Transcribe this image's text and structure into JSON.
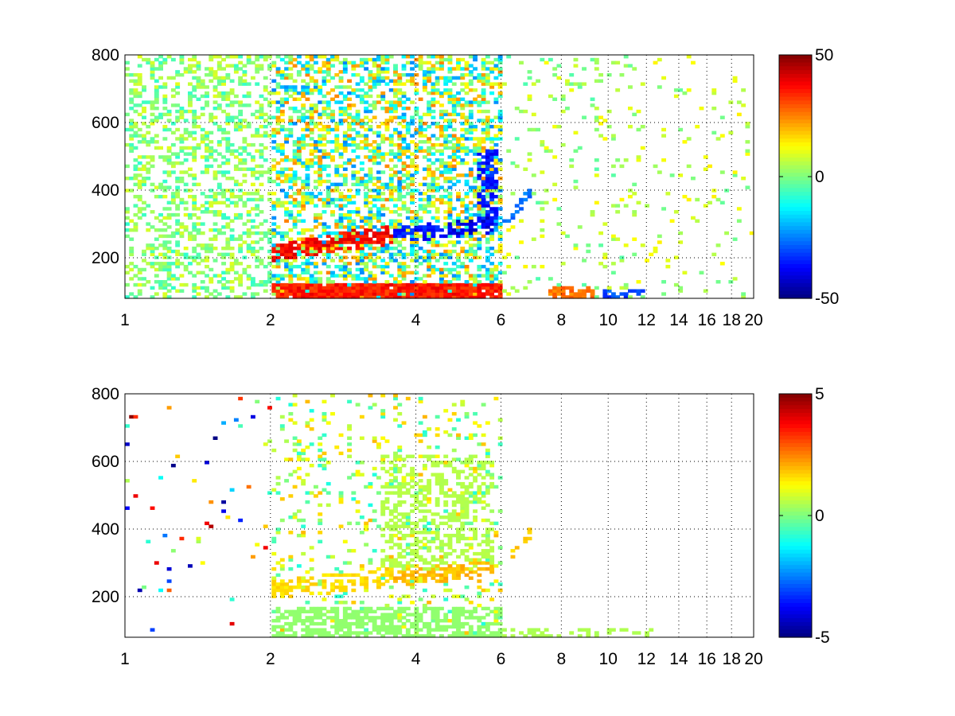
{
  "chart_data": [
    {
      "type": "heatmap",
      "title": "",
      "xlabel": "",
      "ylabel": "",
      "xscale": "log",
      "xlim": [
        1,
        20
      ],
      "ylim": [
        80,
        800
      ],
      "x_ticks": [
        1,
        2,
        4,
        6,
        8,
        10,
        12,
        14,
        16,
        18,
        20
      ],
      "x_tick_labels": [
        "1",
        "2",
        "4",
        "6",
        "8",
        "10",
        "12",
        "14",
        "16",
        "18",
        "20"
      ],
      "y_ticks": [
        200,
        400,
        600,
        800
      ],
      "y_tick_labels": [
        "200",
        "400",
        "600",
        "800"
      ],
      "grid": true,
      "colormap": "jet",
      "clim": [
        -50,
        50
      ],
      "colorbar_ticks": [
        50,
        0,
        -50
      ],
      "colorbar_tick_labels": [
        "50",
        "0",
        "-50"
      ],
      "colorbar_position": "right",
      "background_color": "#ffffff",
      "features": [
        {
          "kind": "ridge",
          "x_range": [
            2.0,
            3.6
          ],
          "y_start": 220,
          "y_end": 270,
          "value": 42,
          "width": 30,
          "density": 0.85
        },
        {
          "kind": "ridge",
          "x_range": [
            3.6,
            4.6
          ],
          "y_start": 270,
          "y_end": 285,
          "value": -40,
          "width": 25,
          "density": 0.8
        },
        {
          "kind": "ridge",
          "x_range": [
            4.6,
            5.8
          ],
          "y_start": 280,
          "y_end": 300,
          "value": -45,
          "width": 25,
          "density": 0.8
        },
        {
          "kind": "ridge",
          "x_range": [
            6.0,
            7.0
          ],
          "y_start": 300,
          "y_end": 400,
          "value": -30,
          "width": 20,
          "density": 0.6
        },
        {
          "kind": "band",
          "x_range": [
            2.0,
            6.0
          ],
          "y_range": [
            80,
            125
          ],
          "value": 40,
          "density": 0.9
        },
        {
          "kind": "band",
          "x_range": [
            5.3,
            5.9
          ],
          "y_range": [
            300,
            520
          ],
          "value": -40,
          "density": 0.6
        },
        {
          "kind": "band",
          "x_range": [
            7.5,
            9.3
          ],
          "y_range": [
            80,
            115
          ],
          "value": 30,
          "density": 0.7
        },
        {
          "kind": "band",
          "x_range": [
            9.8,
            11.8
          ],
          "y_range": [
            80,
            110
          ],
          "value": -35,
          "density": 0.6
        }
      ],
      "noise": [
        {
          "x_range": [
            1.0,
            2.0
          ],
          "value_range": [
            -8,
            10
          ],
          "density": 0.35
        },
        {
          "x_range": [
            2.0,
            6.0
          ],
          "value_range": [
            -25,
            25
          ],
          "density": 0.5
        },
        {
          "x_range": [
            6.0,
            12.0
          ],
          "value_range": [
            -5,
            14
          ],
          "density": 0.07
        },
        {
          "x_range": [
            12.0,
            20.0
          ],
          "value_range": [
            -3,
            14
          ],
          "density": 0.05
        }
      ]
    },
    {
      "type": "heatmap",
      "title": "",
      "xlabel": "",
      "ylabel": "",
      "xscale": "log",
      "xlim": [
        1,
        20
      ],
      "ylim": [
        80,
        800
      ],
      "x_ticks": [
        1,
        2,
        4,
        6,
        8,
        10,
        12,
        14,
        16,
        18,
        20
      ],
      "x_tick_labels": [
        "1",
        "2",
        "4",
        "6",
        "8",
        "10",
        "12",
        "14",
        "16",
        "18",
        "20"
      ],
      "y_ticks": [
        200,
        400,
        600,
        800
      ],
      "y_tick_labels": [
        "200",
        "400",
        "600",
        "800"
      ],
      "grid": true,
      "colormap": "jet",
      "clim": [
        -5,
        5
      ],
      "colorbar_ticks": [
        5,
        0,
        -5
      ],
      "colorbar_tick_labels": [
        "5",
        "0",
        "-5"
      ],
      "colorbar_position": "right",
      "background_color": "#ffffff",
      "features": [
        {
          "kind": "ridge",
          "x_range": [
            2.0,
            3.6
          ],
          "y_start": 220,
          "y_end": 260,
          "value": 1.8,
          "width": 30,
          "density": 0.7
        },
        {
          "kind": "ridge",
          "x_range": [
            3.6,
            5.8
          ],
          "y_start": 255,
          "y_end": 285,
          "value": 2.2,
          "width": 25,
          "density": 0.8
        },
        {
          "kind": "ridge",
          "x_range": [
            6.3,
            7.0
          ],
          "y_start": 330,
          "y_end": 400,
          "value": 2.0,
          "width": 20,
          "density": 0.5
        },
        {
          "kind": "band",
          "x_range": [
            2.0,
            6.0
          ],
          "y_range": [
            80,
            170
          ],
          "value": 0.2,
          "density": 0.6
        },
        {
          "kind": "band",
          "x_range": [
            3.4,
            5.8
          ],
          "y_range": [
            280,
            620
          ],
          "value": 0.6,
          "density": 0.35
        },
        {
          "kind": "band",
          "x_range": [
            6.0,
            12.5
          ],
          "y_range": [
            80,
            110
          ],
          "value": 0.5,
          "density": 0.35
        }
      ],
      "noise": [
        {
          "x_range": [
            1.0,
            2.0
          ],
          "value_range": [
            -5,
            5
          ],
          "density": 0.02
        },
        {
          "x_range": [
            2.0,
            6.0
          ],
          "value_range": [
            -1,
            2
          ],
          "density": 0.12
        }
      ]
    }
  ]
}
